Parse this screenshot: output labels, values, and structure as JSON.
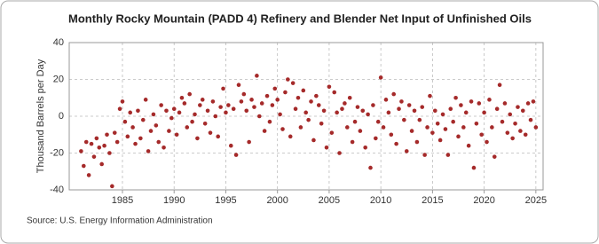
{
  "chart_data": {
    "type": "scatter",
    "title": "Monthly Rocky Mountain (PADD 4) Refinery and Blender Net Input of Unfinished Oils",
    "y_label": "Thousand Barrels per Day",
    "source": "Source: U.S. Energy Information Administration",
    "color": "#a52a2a",
    "grid": true,
    "xlim": [
      1979.85,
      2025.7
    ],
    "ylim": [
      -40,
      40
    ],
    "xticks": [
      1985,
      1990,
      1995,
      2000,
      2005,
      2010,
      2015,
      2020,
      2025
    ],
    "yticks": [
      -40,
      -20,
      0,
      20,
      40
    ],
    "x": [
      1981,
      1981.25,
      1981.5,
      1981.75,
      1982,
      1982.25,
      1982.5,
      1982.75,
      1983,
      1983.25,
      1983.5,
      1983.75,
      1984,
      1984.25,
      1984.5,
      1984.75,
      1985,
      1985.25,
      1985.5,
      1985.75,
      1986,
      1986.25,
      1986.5,
      1986.75,
      1987,
      1987.25,
      1987.5,
      1987.75,
      1988,
      1988.25,
      1988.5,
      1988.75,
      1989,
      1989.25,
      1989.5,
      1989.75,
      1990,
      1990.25,
      1990.5,
      1990.75,
      1991,
      1991.25,
      1991.5,
      1991.75,
      1992,
      1992.25,
      1992.5,
      1992.75,
      1993,
      1993.25,
      1993.5,
      1993.75,
      1994,
      1994.25,
      1994.5,
      1994.75,
      1995,
      1995.25,
      1995.5,
      1995.75,
      1996,
      1996.25,
      1996.5,
      1996.75,
      1997,
      1997.25,
      1997.5,
      1997.75,
      1998,
      1998.25,
      1998.5,
      1998.75,
      1999,
      1999.25,
      1999.5,
      1999.75,
      2000,
      2000.25,
      2000.5,
      2000.75,
      2001,
      2001.25,
      2001.5,
      2001.75,
      2002,
      2002.25,
      2002.5,
      2002.75,
      2003,
      2003.25,
      2003.5,
      2003.75,
      2004,
      2004.25,
      2004.5,
      2004.75,
      2005,
      2005.25,
      2005.5,
      2005.75,
      2006,
      2006.25,
      2006.5,
      2006.75,
      2007,
      2007.25,
      2007.5,
      2007.75,
      2008,
      2008.25,
      2008.5,
      2008.75,
      2009,
      2009.25,
      2009.5,
      2009.75,
      2010,
      2010.25,
      2010.5,
      2010.75,
      2011,
      2011.25,
      2011.5,
      2011.75,
      2012,
      2012.25,
      2012.5,
      2012.75,
      2013,
      2013.25,
      2013.5,
      2013.75,
      2014,
      2014.25,
      2014.5,
      2014.75,
      2015,
      2015.25,
      2015.5,
      2015.75,
      2016,
      2016.25,
      2016.5,
      2016.75,
      2017,
      2017.25,
      2017.5,
      2017.75,
      2018,
      2018.25,
      2018.5,
      2018.75,
      2019,
      2019.25,
      2019.5,
      2019.75,
      2020,
      2020.25,
      2020.5,
      2020.75,
      2021,
      2021.25,
      2021.5,
      2021.75,
      2022,
      2022.25,
      2022.5,
      2022.75,
      2023,
      2023.25,
      2023.5,
      2023.75,
      2024,
      2024.25,
      2024.5,
      2024.75,
      2025
    ],
    "values": [
      -19,
      -27,
      -14,
      -32,
      -15,
      -22,
      -12,
      -17,
      -26,
      -16,
      -10,
      -20,
      -38,
      -9,
      -14,
      4,
      8,
      -3,
      -11,
      2,
      -6,
      -15,
      3,
      -12,
      -2,
      9,
      -19,
      -8,
      1,
      -5,
      -14,
      6,
      -17,
      3,
      -8,
      -1,
      4,
      -10,
      2,
      10,
      7,
      -6,
      12,
      -3,
      1,
      -12,
      6,
      9,
      -4,
      3,
      -9,
      8,
      0,
      -11,
      5,
      15,
      2,
      6,
      -16,
      4,
      -21,
      17,
      8,
      12,
      3,
      -14,
      9,
      5,
      22,
      0,
      7,
      -8,
      11,
      -3,
      6,
      15,
      9,
      1,
      -7,
      13,
      20,
      -11,
      18,
      4,
      10,
      -6,
      14,
      2,
      -2,
      8,
      -13,
      11,
      6,
      -4,
      3,
      -17,
      16,
      -9,
      13,
      2,
      -20,
      4,
      7,
      -6,
      10,
      -14,
      -3,
      5,
      -8,
      3,
      -17,
      1,
      -28,
      6,
      -12,
      -3,
      21,
      -6,
      9,
      2,
      -10,
      12,
      -15,
      4,
      8,
      -2,
      -19,
      6,
      -8,
      3,
      -14,
      -2,
      5,
      -21,
      -6,
      11,
      -9,
      3,
      -4,
      -13,
      1,
      -7,
      -21,
      4,
      -3,
      10,
      -11,
      6,
      -6,
      2,
      -16,
      8,
      -28,
      -4,
      7,
      -10,
      2,
      -14,
      9,
      -6,
      -22,
      4,
      17,
      -3,
      7,
      -9,
      1,
      -12,
      -4,
      5,
      -8,
      3,
      -10,
      7,
      -2,
      8,
      -6
    ]
  }
}
